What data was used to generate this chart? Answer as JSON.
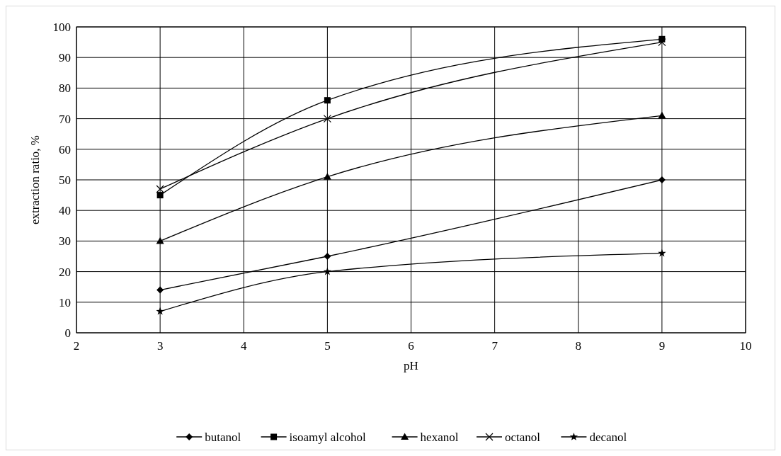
{
  "chart_data": {
    "type": "line",
    "xlabel": "pH",
    "ylabel": "extraction  ratio, %",
    "x": [
      3,
      5,
      9
    ],
    "series": [
      {
        "name": "butanol",
        "color": "#000000",
        "marker": "diamond",
        "values": [
          14,
          25,
          50
        ]
      },
      {
        "name": "isoamyl alcohol",
        "color": "#000000",
        "marker": "square",
        "values": [
          45,
          76,
          96
        ]
      },
      {
        "name": "hexanol",
        "color": "#000000",
        "marker": "triangle",
        "values": [
          30,
          51,
          71
        ]
      },
      {
        "name": "octanol",
        "color": "#000000",
        "marker": "cross",
        "values": [
          47,
          70,
          95
        ]
      },
      {
        "name": "decanol",
        "color": "#000000",
        "marker": "star",
        "values": [
          7,
          20,
          26
        ]
      }
    ],
    "xlim": [
      2,
      10
    ],
    "xticks": [
      2,
      3,
      4,
      5,
      6,
      7,
      8,
      9,
      10
    ],
    "ylim": [
      0,
      100
    ],
    "yticks": [
      0,
      10,
      20,
      30,
      40,
      50,
      60,
      70,
      80,
      90,
      100
    ],
    "grid": true,
    "legend": "bottom",
    "line_style": "solid"
  }
}
